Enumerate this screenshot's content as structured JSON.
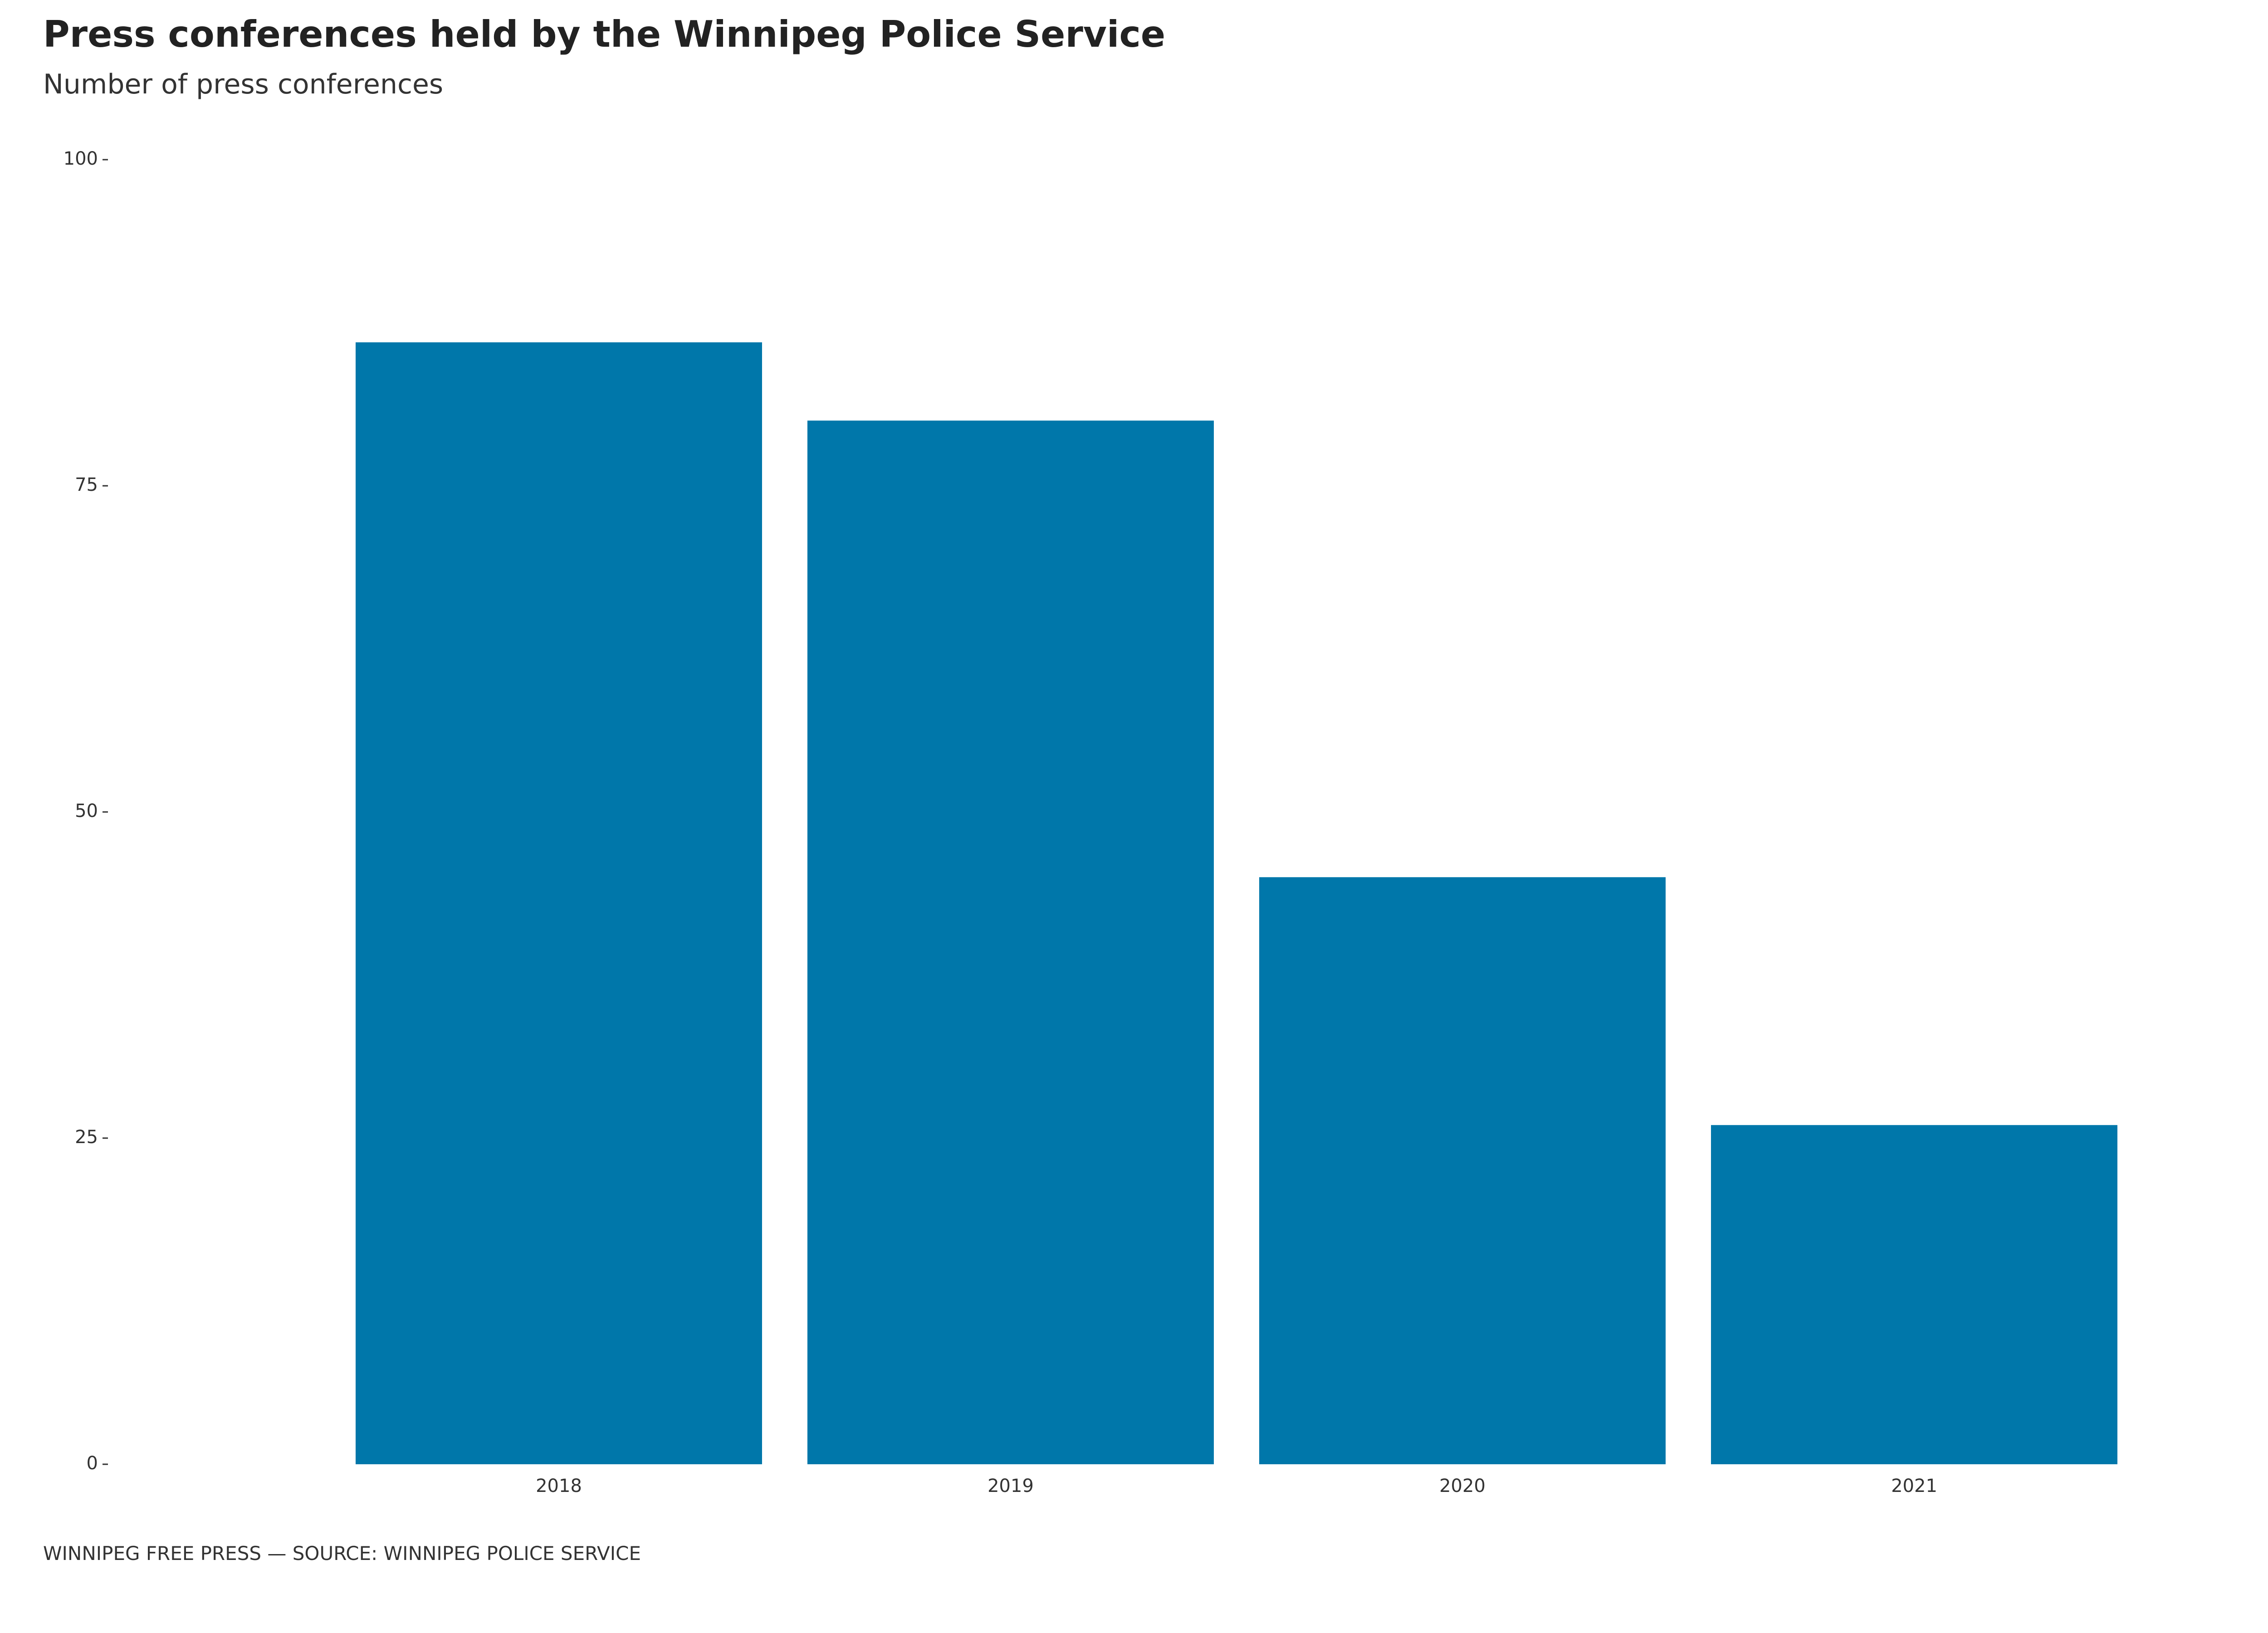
{
  "title": "Press conferences held by the Winnipeg Police Service",
  "subtitle": "Number of press conferences",
  "footer": "WINNIPEG FREE PRESS — SOURCE: WINNIPEG POLICE SERVICE",
  "colors": {
    "bar": "#0077aa",
    "tick": "#333333"
  },
  "chart_data": {
    "type": "bar",
    "title": "Press conferences held by the Winnipeg Police Service",
    "subtitle": "Number of press conferences",
    "xlabel": "",
    "ylabel": "",
    "categories": [
      "2018",
      "2019",
      "2020",
      "2021"
    ],
    "values": [
      86,
      80,
      45,
      26
    ],
    "ylim": [
      0,
      100
    ],
    "yticks": [
      0,
      25,
      50,
      75,
      100
    ],
    "grid": false,
    "legend": "none"
  }
}
